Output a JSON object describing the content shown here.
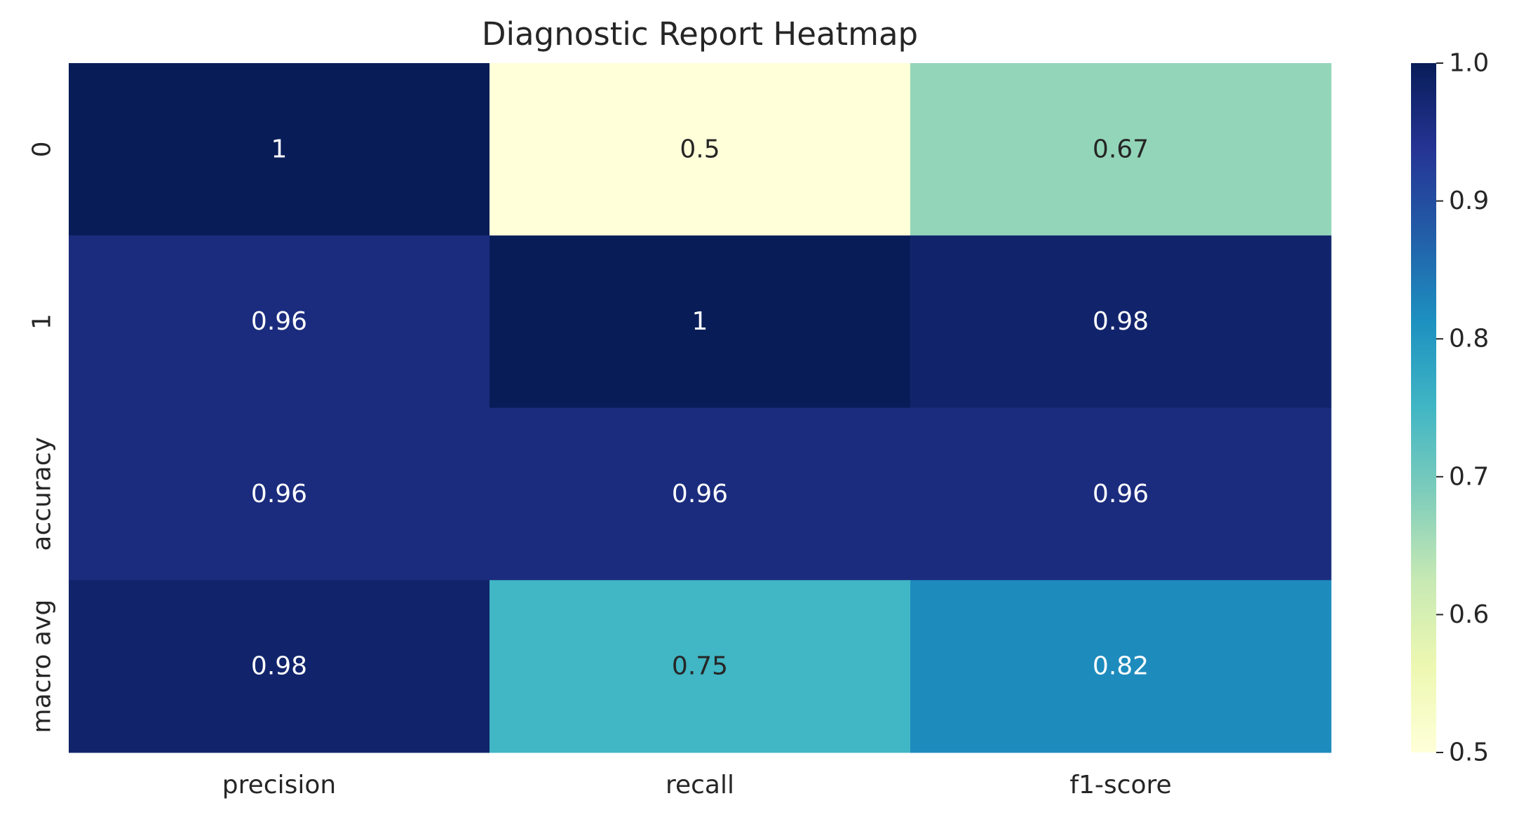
{
  "chart_data": {
    "type": "heatmap",
    "title": "Diagnostic Report Heatmap",
    "xlabel": "",
    "ylabel": "",
    "columns": [
      "precision",
      "recall",
      "f1-score"
    ],
    "rows": [
      "0",
      "1",
      "accuracy",
      "macro avg"
    ],
    "values": [
      [
        1.0,
        0.5,
        0.67
      ],
      [
        0.96,
        1.0,
        0.98
      ],
      [
        0.96,
        0.96,
        0.96
      ],
      [
        0.98,
        0.75,
        0.82
      ]
    ],
    "annotations": [
      [
        "1",
        "0.5",
        "0.67"
      ],
      [
        "0.96",
        "1",
        "0.98"
      ],
      [
        "0.96",
        "0.96",
        "0.96"
      ],
      [
        "0.98",
        "0.75",
        "0.82"
      ]
    ],
    "colormap": "YlGnBu",
    "colorbar": {
      "range": [
        0.5,
        1.0
      ],
      "ticks": [
        "0.5",
        "0.6",
        "0.7",
        "0.8",
        "0.9",
        "1.0"
      ]
    },
    "grid": false,
    "legend": "colorbar-right"
  }
}
